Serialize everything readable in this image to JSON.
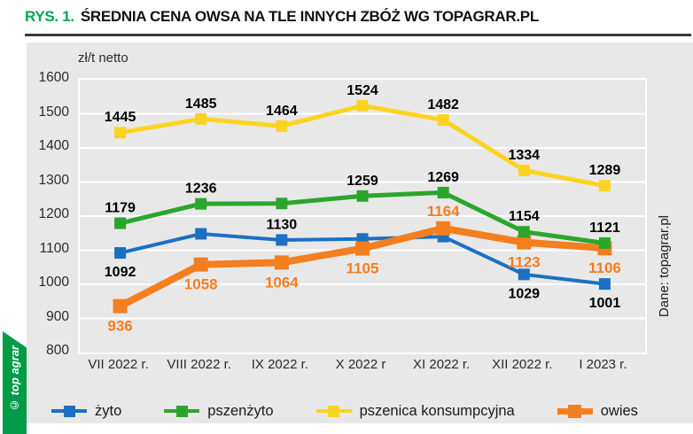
{
  "figure": {
    "label": "RYS. 1.",
    "title": "ŚREDNIA CENA OWSA NA TLE INNYCH ZBÓŻ WG TOPAGRAR.PL"
  },
  "source_note": "Dane: topagrar.pl",
  "watermark": "© top agrar",
  "chart_data": {
    "type": "line",
    "unit_label": "zł/t netto",
    "categories": [
      "VII 2022 r.",
      "VIII 2022 r.",
      "IX 2022 r.",
      "X 2022 r",
      "XI 2022 r.",
      "XII 2022 r.",
      "I 2023 r."
    ],
    "ylim": [
      800,
      1600
    ],
    "ytick_step": 100,
    "yticks": [
      "1600",
      "1500",
      "1400",
      "1300",
      "1200",
      "1100",
      "1000",
      "900",
      "800"
    ],
    "grid": "horizontal-white-lines",
    "legend_position": "bottom",
    "series": [
      {
        "name": "żyto",
        "color": "#1c70c4",
        "label_color": "#000000",
        "values": [
          1092,
          1148,
          1130,
          1133,
          1140,
          1029,
          1001
        ],
        "data_labels": [
          "1092",
          null,
          "1130",
          null,
          null,
          "1029",
          "1001"
        ],
        "label_side": [
          "below",
          null,
          "above",
          null,
          null,
          "below",
          "below"
        ]
      },
      {
        "name": "pszenżyto",
        "color": "#2ba62c",
        "label_color": "#000000",
        "values": [
          1179,
          1236,
          1237,
          1259,
          1269,
          1154,
          1121
        ],
        "data_labels": [
          "1179",
          "1236",
          null,
          "1259",
          "1269",
          "1154",
          "1121"
        ],
        "label_side": [
          "above",
          "above",
          null,
          "above",
          "above",
          "above",
          "above"
        ]
      },
      {
        "name": "pszenica konsumpcyjna",
        "color": "#fdd321",
        "label_color": "#000000",
        "values": [
          1445,
          1485,
          1464,
          1524,
          1482,
          1334,
          1289
        ],
        "data_labels": [
          "1445",
          "1485",
          "1464",
          "1524",
          "1482",
          "1334",
          "1289"
        ],
        "label_side": [
          "above",
          "above",
          "above",
          "above",
          "above",
          "above",
          "above"
        ]
      },
      {
        "name": "owies",
        "color": "#f57e1f",
        "label_color": "#f57e1f",
        "values": [
          936,
          1058,
          1064,
          1105,
          1164,
          1123,
          1106
        ],
        "data_labels": [
          "936",
          "1058",
          "1064",
          "1105",
          "1164",
          "1123",
          "1106"
        ],
        "label_side": [
          "below",
          "below",
          "below",
          "below",
          "above",
          "below",
          "below"
        ]
      }
    ]
  }
}
